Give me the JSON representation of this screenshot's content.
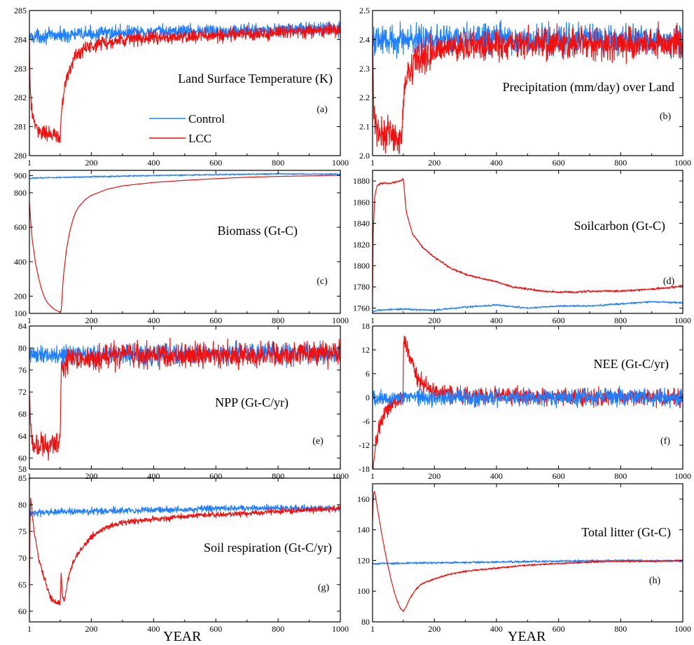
{
  "colors": {
    "control": "#1f7fff",
    "lcc": "#ee1111",
    "axes": "#000000"
  },
  "legend": {
    "control": "Control",
    "lcc": "LCC"
  },
  "x_axis_title": "YEAR",
  "chart_data": [
    {
      "id": "a",
      "type": "line",
      "title": "Land Surface Temperature (K)",
      "panel_label": "(a)",
      "xlim": [
        1,
        1000
      ],
      "ylim": [
        280,
        285
      ],
      "xticks": [
        1,
        200,
        400,
        600,
        800,
        1000
      ],
      "yticks": [
        280,
        281,
        282,
        283,
        284,
        285
      ],
      "legend": true,
      "series": [
        {
          "name": "Control",
          "x": [
            1,
            100,
            200,
            300,
            400,
            500,
            600,
            700,
            800,
            900,
            1000
          ],
          "y": [
            284.1,
            284.15,
            284.2,
            284.25,
            284.25,
            284.3,
            284.3,
            284.3,
            284.35,
            284.35,
            284.35
          ],
          "noise": 0.18
        },
        {
          "name": "LCC",
          "x": [
            1,
            3,
            8,
            20,
            40,
            60,
            80,
            100,
            105,
            115,
            130,
            150,
            180,
            220,
            300,
            400,
            500,
            600,
            700,
            800,
            900,
            1000
          ],
          "y": [
            284.0,
            282.5,
            281.6,
            281.0,
            280.8,
            280.75,
            280.7,
            280.6,
            281.6,
            282.4,
            283.0,
            283.4,
            283.7,
            283.85,
            284.0,
            284.05,
            284.1,
            284.15,
            284.2,
            284.25,
            284.3,
            284.35
          ],
          "noise": 0.18
        }
      ]
    },
    {
      "id": "b",
      "type": "line",
      "title": "Precipitation (mm/day)  over Land",
      "panel_label": "(b)",
      "xlim": [
        1,
        1000
      ],
      "ylim": [
        2.0,
        2.5
      ],
      "xticks": [
        1,
        200,
        400,
        600,
        800,
        1000
      ],
      "yticks": [
        2.0,
        2.1,
        2.2,
        2.3,
        2.4,
        2.5
      ],
      "series": [
        {
          "name": "Control",
          "x": [
            1,
            1000
          ],
          "y": [
            2.4,
            2.4
          ],
          "noise": 0.04
        },
        {
          "name": "LCC",
          "x": [
            1,
            5,
            20,
            60,
            95,
            102,
            115,
            140,
            200,
            300,
            1000
          ],
          "y": [
            2.42,
            2.15,
            2.08,
            2.07,
            2.06,
            2.22,
            2.28,
            2.33,
            2.36,
            2.38,
            2.39
          ],
          "noise": 0.04
        }
      ]
    },
    {
      "id": "c",
      "type": "line",
      "title": "Biomass (Gt-C)",
      "panel_label": "(c)",
      "xlim": [
        1,
        1000
      ],
      "ylim": [
        100,
        930
      ],
      "xticks": [
        1,
        200,
        400,
        600,
        800,
        1000
      ],
      "yticks": [
        100,
        200,
        400,
        600,
        800,
        900
      ],
      "series": [
        {
          "name": "Control",
          "x": [
            1,
            200,
            400,
            600,
            800,
            1000
          ],
          "y": [
            885,
            893,
            900,
            905,
            910,
            908
          ],
          "noise": 3
        },
        {
          "name": "LCC",
          "x": [
            1,
            5,
            10,
            20,
            30,
            40,
            50,
            60,
            70,
            80,
            90,
            100,
            103,
            110,
            120,
            130,
            140,
            150,
            160,
            180,
            200,
            250,
            300,
            400,
            500,
            600,
            700,
            800,
            900,
            1000
          ],
          "y": [
            750,
            640,
            530,
            400,
            310,
            240,
            190,
            160,
            140,
            125,
            115,
            108,
            115,
            310,
            470,
            570,
            640,
            690,
            720,
            760,
            785,
            820,
            840,
            860,
            872,
            882,
            890,
            895,
            898,
            902
          ],
          "noise": 0
        }
      ]
    },
    {
      "id": "d",
      "type": "line",
      "title": "Soilcarbon (Gt-C)",
      "panel_label": "(d)",
      "xlim": [
        1,
        1000
      ],
      "ylim": [
        1755,
        1890
      ],
      "xticks": [
        1,
        200,
        400,
        600,
        800,
        1000
      ],
      "yticks": [
        1760,
        1780,
        1800,
        1820,
        1840,
        1860,
        1880
      ],
      "series": [
        {
          "name": "Control",
          "x": [
            1,
            15,
            100,
            200,
            300,
            400,
            500,
            600,
            700,
            800,
            900,
            1000
          ],
          "y": [
            1756,
            1758,
            1759,
            1758,
            1761,
            1763,
            1760,
            1762,
            1762,
            1764,
            1766,
            1765
          ],
          "noise": 0.6
        },
        {
          "name": "LCC",
          "x": [
            1,
            3,
            8,
            15,
            30,
            60,
            90,
            100,
            110,
            130,
            160,
            200,
            250,
            300,
            350,
            400,
            450,
            500,
            550,
            600,
            650,
            700,
            800,
            900,
            950,
            1000
          ],
          "y": [
            1770,
            1830,
            1865,
            1875,
            1878,
            1878,
            1880,
            1882,
            1850,
            1830,
            1818,
            1808,
            1798,
            1792,
            1788,
            1785,
            1780,
            1778,
            1776,
            1775,
            1775,
            1776,
            1776,
            1778,
            1779,
            1781
          ],
          "noise": 0.7
        }
      ]
    },
    {
      "id": "e",
      "type": "line",
      "title": "NPP (Gt-C/yr)",
      "panel_label": "(e)",
      "xlim": [
        1,
        1000
      ],
      "ylim": [
        58,
        84
      ],
      "xticks": [
        1,
        200,
        400,
        600,
        800,
        1000
      ],
      "yticks": [
        58,
        60,
        64,
        68,
        72,
        76,
        80,
        84
      ],
      "series": [
        {
          "name": "Control",
          "x": [
            1,
            1000
          ],
          "y": [
            78.8,
            79.0
          ],
          "noise": 1.4
        },
        {
          "name": "LCC",
          "x": [
            1,
            5,
            10,
            30,
            60,
            95,
            100,
            103,
            110,
            150,
            200,
            300,
            500,
            1000
          ],
          "y": [
            72,
            66,
            63,
            62.5,
            62.3,
            62.5,
            64,
            75,
            77,
            78,
            78.2,
            78.5,
            78.7,
            79
          ],
          "noise": 1.7
        }
      ]
    },
    {
      "id": "f",
      "type": "line",
      "title": "NEE (Gt-C/yr)",
      "panel_label": "(f)",
      "xlim": [
        1,
        1000
      ],
      "ylim": [
        -18,
        18
      ],
      "xticks": [
        1,
        200,
        400,
        600,
        800,
        1000
      ],
      "yticks": [
        -18,
        -12,
        -6,
        0,
        6,
        12,
        18
      ],
      "series": [
        {
          "name": "LCC",
          "x": [
            1,
            5,
            10,
            20,
            40,
            60,
            80,
            99,
            101,
            110,
            130,
            150,
            200,
            300,
            1000
          ],
          "y": [
            -17,
            -16,
            -12,
            -8,
            -4,
            -2,
            -1,
            -0.5,
            15,
            13,
            8,
            4,
            1.5,
            0.5,
            0
          ],
          "noise": 1.6
        },
        {
          "name": "Control",
          "x": [
            1,
            1000
          ],
          "y": [
            0,
            0
          ],
          "noise": 1.6
        }
      ]
    },
    {
      "id": "g",
      "type": "line",
      "title": "Soil respiration (Gt-C/yr)",
      "panel_label": "(g)",
      "xlim": [
        1,
        1000
      ],
      "ylim": [
        58,
        85
      ],
      "xticks": [
        1,
        200,
        400,
        600,
        800,
        1000
      ],
      "yticks": [
        60,
        65,
        70,
        75,
        80,
        85
      ],
      "series": [
        {
          "name": "Control",
          "x": [
            1,
            200,
            400,
            600,
            800,
            1000
          ],
          "y": [
            78.5,
            78.8,
            79.0,
            79.3,
            79.4,
            79.3
          ],
          "noise": 0.45
        },
        {
          "name": "LCC",
          "x": [
            1,
            3,
            5,
            8,
            12,
            20,
            30,
            40,
            50,
            60,
            70,
            80,
            90,
            100,
            103,
            107,
            112,
            118,
            125,
            140,
            160,
            200,
            250,
            300,
            400,
            500,
            600,
            700,
            800,
            900,
            1000
          ],
          "y": [
            63,
            76,
            81.5,
            80,
            77,
            73.5,
            70,
            68,
            66,
            64,
            62.5,
            61.8,
            61.5,
            61.5,
            67.5,
            63,
            62,
            63.5,
            66,
            69,
            71,
            74,
            75.8,
            76.7,
            77.3,
            77.8,
            78.1,
            78.4,
            78.7,
            79.0,
            79.3
          ],
          "noise": 0.4
        }
      ]
    },
    {
      "id": "h",
      "type": "line",
      "title": "Total litter (Gt-C)",
      "panel_label": "(h)",
      "xlim": [
        1,
        1000
      ],
      "ylim": [
        80,
        170
      ],
      "xticks": [
        1,
        200,
        400,
        600,
        800,
        1000
      ],
      "yticks": [
        80,
        100,
        120,
        140,
        160
      ],
      "series": [
        {
          "name": "Control",
          "x": [
            1,
            200,
            400,
            600,
            800,
            1000
          ],
          "y": [
            118,
            118.5,
            119,
            119.5,
            120,
            119.5
          ],
          "noise": 0.5
        },
        {
          "name": "LCC",
          "x": [
            1,
            3,
            5,
            8,
            12,
            20,
            30,
            40,
            50,
            60,
            70,
            80,
            90,
            100,
            110,
            120,
            140,
            160,
            200,
            250,
            300,
            400,
            500,
            600,
            700,
            800,
            900,
            1000
          ],
          "y": [
            145,
            158,
            164,
            165,
            160,
            150,
            138,
            127,
            117,
            108,
            100,
            94,
            89,
            87,
            90,
            95,
            101,
            105,
            108,
            111,
            113,
            115,
            117,
            118,
            119,
            119.5,
            119.5,
            120
          ],
          "noise": 0.4
        }
      ]
    }
  ]
}
